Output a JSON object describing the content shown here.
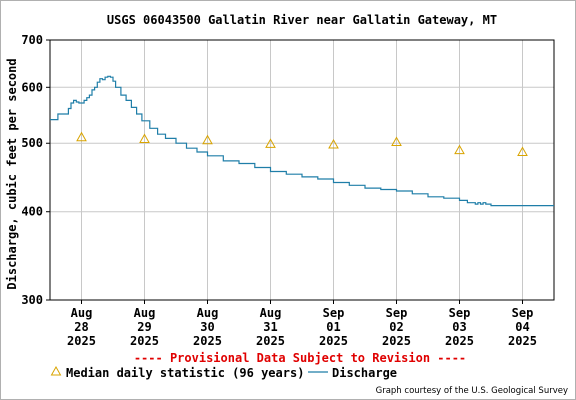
{
  "chart_data": {
    "type": "line",
    "title": "USGS 06043500 Gallatin River near Gallatin Gateway, MT",
    "ylabel": "Discharge, cubic feet per second",
    "xlabel": "",
    "y_scale": "log",
    "ylim": [
      300,
      700
    ],
    "y_ticks": [
      {
        "value": 300,
        "label": "300"
      },
      {
        "value": 400,
        "label": "400"
      },
      {
        "value": 500,
        "label": "500"
      },
      {
        "value": 600,
        "label": "600"
      },
      {
        "value": 700,
        "label": "700"
      }
    ],
    "xlim": [
      "2025-08-27T12:00",
      "2025-09-04T12:00"
    ],
    "x_ticks": [
      {
        "date": "2025-08-28",
        "line1": "Aug",
        "line2": "28",
        "line3": "2025"
      },
      {
        "date": "2025-08-29",
        "line1": "Aug",
        "line2": "29",
        "line3": "2025"
      },
      {
        "date": "2025-08-30",
        "line1": "Aug",
        "line2": "30",
        "line3": "2025"
      },
      {
        "date": "2025-08-31",
        "line1": "Aug",
        "line2": "31",
        "line3": "2025"
      },
      {
        "date": "2025-09-01",
        "line1": "Sep",
        "line2": "01",
        "line3": "2025"
      },
      {
        "date": "2025-09-02",
        "line1": "Sep",
        "line2": "02",
        "line3": "2025"
      },
      {
        "date": "2025-09-03",
        "line1": "Sep",
        "line2": "03",
        "line3": "2025"
      },
      {
        "date": "2025-09-04",
        "line1": "Sep",
        "line2": "04",
        "line3": "2025"
      }
    ],
    "grid": true,
    "series": [
      {
        "name": "Discharge",
        "color": "#1f7ea8",
        "style": "line",
        "points": [
          [
            "2025-08-27T12:00",
            540
          ],
          [
            "2025-08-27T14:00",
            540
          ],
          [
            "2025-08-27T15:00",
            550
          ],
          [
            "2025-08-27T18:00",
            550
          ],
          [
            "2025-08-27T19:00",
            560
          ],
          [
            "2025-08-27T20:00",
            570
          ],
          [
            "2025-08-27T21:00",
            575
          ],
          [
            "2025-08-27T22:00",
            572
          ],
          [
            "2025-08-27T23:00",
            570
          ],
          [
            "2025-08-28T00:00",
            570
          ],
          [
            "2025-08-28T01:00",
            575
          ],
          [
            "2025-08-28T02:00",
            580
          ],
          [
            "2025-08-28T03:00",
            585
          ],
          [
            "2025-08-28T04:00",
            595
          ],
          [
            "2025-08-28T05:00",
            600
          ],
          [
            "2025-08-28T06:00",
            610
          ],
          [
            "2025-08-28T07:00",
            617
          ],
          [
            "2025-08-28T08:00",
            615
          ],
          [
            "2025-08-28T09:00",
            620
          ],
          [
            "2025-08-28T10:00",
            622
          ],
          [
            "2025-08-28T11:00",
            620
          ],
          [
            "2025-08-28T12:00",
            612
          ],
          [
            "2025-08-28T13:00",
            600
          ],
          [
            "2025-08-28T15:00",
            585
          ],
          [
            "2025-08-28T17:00",
            575
          ],
          [
            "2025-08-28T19:00",
            562
          ],
          [
            "2025-08-28T21:00",
            550
          ],
          [
            "2025-08-28T23:00",
            538
          ],
          [
            "2025-08-29T02:00",
            525
          ],
          [
            "2025-08-29T05:00",
            515
          ],
          [
            "2025-08-29T08:00",
            508
          ],
          [
            "2025-08-29T12:00",
            500
          ],
          [
            "2025-08-29T16:00",
            492
          ],
          [
            "2025-08-29T20:00",
            486
          ],
          [
            "2025-08-30T00:00",
            480
          ],
          [
            "2025-08-30T06:00",
            472
          ],
          [
            "2025-08-30T12:00",
            468
          ],
          [
            "2025-08-30T18:00",
            462
          ],
          [
            "2025-08-31T00:00",
            456
          ],
          [
            "2025-08-31T06:00",
            452
          ],
          [
            "2025-08-31T12:00",
            448
          ],
          [
            "2025-08-31T18:00",
            445
          ],
          [
            "2025-09-01T00:00",
            440
          ],
          [
            "2025-09-01T06:00",
            436
          ],
          [
            "2025-09-01T12:00",
            432
          ],
          [
            "2025-09-01T18:00",
            430
          ],
          [
            "2025-09-02T00:00",
            428
          ],
          [
            "2025-09-02T06:00",
            424
          ],
          [
            "2025-09-02T12:00",
            420
          ],
          [
            "2025-09-02T18:00",
            418
          ],
          [
            "2025-09-03T00:00",
            415
          ],
          [
            "2025-09-03T03:00",
            412
          ],
          [
            "2025-09-03T06:00",
            410
          ],
          [
            "2025-09-03T07:00",
            412
          ],
          [
            "2025-09-03T08:00",
            410
          ],
          [
            "2025-09-03T09:00",
            412
          ],
          [
            "2025-09-03T10:00",
            410
          ],
          [
            "2025-09-03T12:00",
            408
          ],
          [
            "2025-09-03T18:00",
            408
          ],
          [
            "2025-09-04T00:00",
            408
          ],
          [
            "2025-09-04T06:00",
            408
          ],
          [
            "2025-09-04T12:00",
            408
          ]
        ]
      },
      {
        "name": "Median daily statistic (96 years)",
        "color": "#d9a400",
        "style": "triangle",
        "points": [
          [
            "2025-08-28T00:00",
            510
          ],
          [
            "2025-08-29T00:00",
            507
          ],
          [
            "2025-08-30T00:00",
            505
          ],
          [
            "2025-08-31T00:00",
            499
          ],
          [
            "2025-09-01T00:00",
            498
          ],
          [
            "2025-09-02T00:00",
            502
          ],
          [
            "2025-09-03T00:00",
            489
          ],
          [
            "2025-09-04T00:00",
            486
          ]
        ]
      }
    ]
  },
  "provisional_note": "---- Provisional Data Subject to Revision ----",
  "credit": "Graph courtesy of the U.S. Geological Survey"
}
